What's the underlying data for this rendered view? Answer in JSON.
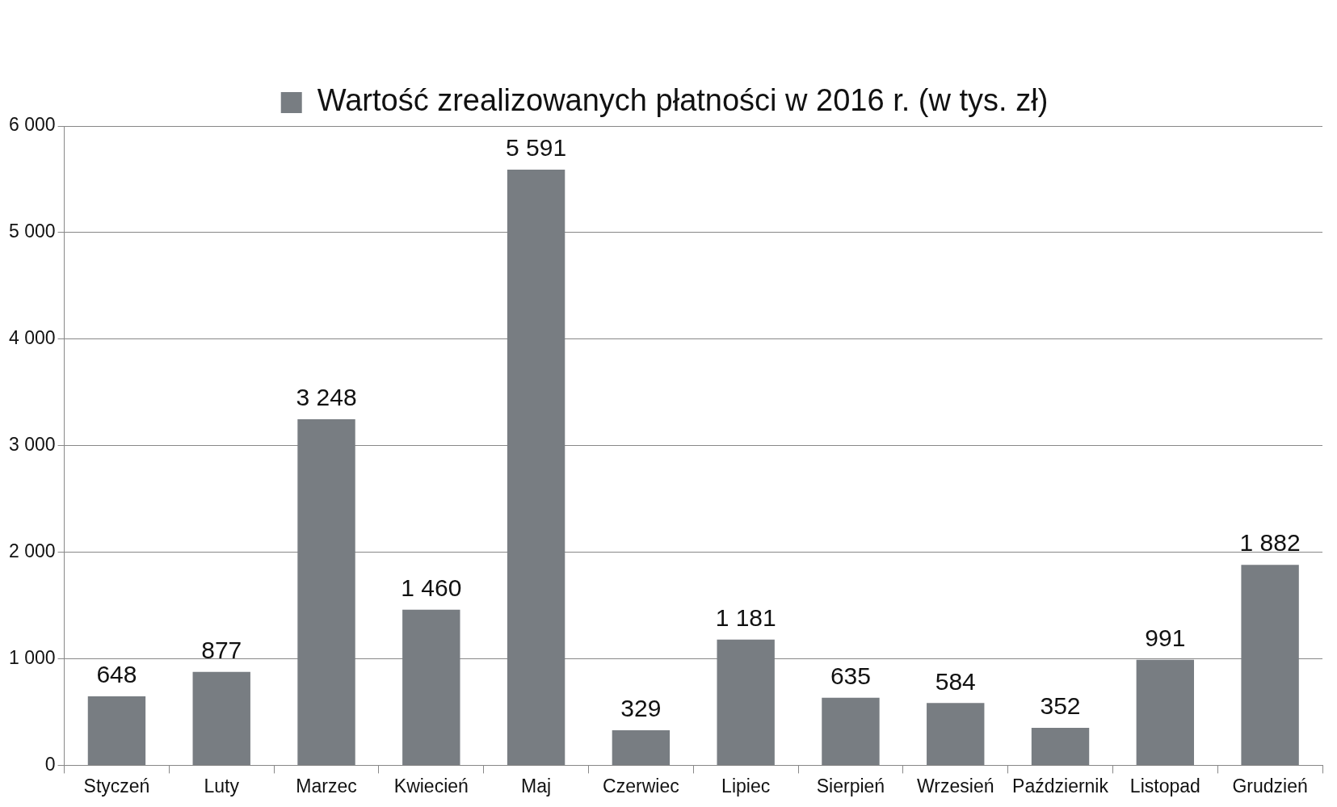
{
  "chart_data": {
    "type": "bar",
    "categories": [
      "Styczeń",
      "Luty",
      "Marzec",
      "Kwiecień",
      "Maj",
      "Czerwiec",
      "Lipiec",
      "Sierpień",
      "Wrzesień",
      "Październik",
      "Listopad",
      "Grudzień"
    ],
    "series": [
      {
        "name": "Wartość zrealizowanych płatności w 2016 r. (w tys. zł)",
        "color": "#787d82",
        "values": [
          648,
          877,
          3248,
          1460,
          5591,
          329,
          1181,
          635,
          584,
          352,
          991,
          1882
        ],
        "value_labels": [
          "648",
          "877",
          "3 248",
          "1 460",
          "5 591",
          "329",
          "1 181",
          "635",
          "584",
          "352",
          "991",
          "1 882"
        ]
      }
    ],
    "ylim": [
      0,
      6000
    ],
    "yticks": [
      {
        "value": 0,
        "label": "0"
      },
      {
        "value": 1000,
        "label": "1 000"
      },
      {
        "value": 2000,
        "label": "2 000"
      },
      {
        "value": 3000,
        "label": "3 000"
      },
      {
        "value": 4000,
        "label": "4 000"
      },
      {
        "value": 5000,
        "label": "5 000"
      },
      {
        "value": 6000,
        "label": "6 000"
      }
    ],
    "grid": "y",
    "legend": "top"
  }
}
